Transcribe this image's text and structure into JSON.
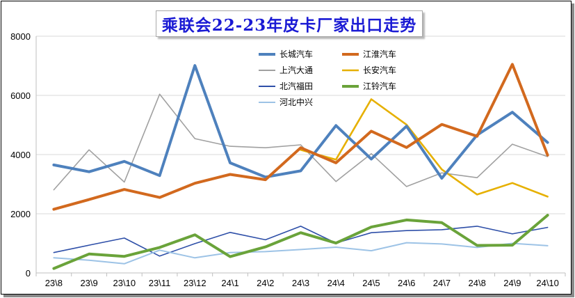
{
  "title": "乘联会22-23年皮卡厂家出口走势",
  "chart_data": {
    "type": "line",
    "title": "乘联会22-23年皮卡厂家出口走势",
    "xlabel": "",
    "ylabel": "",
    "ylim": [
      0,
      8000
    ],
    "yticks": [
      0,
      2000,
      4000,
      6000,
      8000
    ],
    "grid": "horizontal",
    "legend_position": "top-center",
    "categories": [
      "23\\8",
      "23\\9",
      "23\\10",
      "23\\11",
      "23\\12",
      "24\\1",
      "24\\2",
      "24\\3",
      "24\\4",
      "24\\5",
      "24\\6",
      "24\\7",
      "24\\8",
      "24\\9",
      "24\\10"
    ],
    "series": [
      {
        "name": "长城汽车",
        "color": "#4e81bd",
        "width": 4,
        "values": [
          3650,
          3420,
          3770,
          3290,
          7010,
          3720,
          3240,
          3450,
          4980,
          3850,
          4960,
          3200,
          4660,
          5430,
          4410
        ]
      },
      {
        "name": "江淮汽车",
        "color": "#d2691e",
        "width": 4,
        "values": [
          2150,
          2480,
          2820,
          2550,
          3030,
          3330,
          3150,
          4230,
          3720,
          4790,
          4240,
          5020,
          4620,
          7050,
          3980
        ]
      },
      {
        "name": "上汽大通",
        "color": "#a0a0a0",
        "width": 1.6,
        "values": [
          2810,
          4160,
          3070,
          6040,
          4540,
          4280,
          4230,
          4330,
          3090,
          4030,
          2920,
          3380,
          3220,
          4350,
          3930
        ]
      },
      {
        "name": "长安汽车",
        "color": "#e6b000",
        "width": 2.6,
        "values": [
          null,
          null,
          null,
          null,
          null,
          null,
          null,
          4160,
          3830,
          5870,
          5010,
          3500,
          2650,
          3040,
          2580
        ]
      },
      {
        "name": "北汽福田",
        "color": "#2e4fa8",
        "width": 1.6,
        "values": [
          690,
          940,
          1180,
          570,
          990,
          1370,
          1120,
          1580,
          1010,
          1360,
          1430,
          1460,
          1580,
          1320,
          1540
        ]
      },
      {
        "name": "江铃汽车",
        "color": "#6aa33a",
        "width": 4,
        "values": [
          150,
          640,
          560,
          860,
          1290,
          550,
          880,
          1360,
          1010,
          1550,
          1790,
          1700,
          930,
          940,
          1950
        ]
      },
      {
        "name": "河北中兴",
        "color": "#9dc3e6",
        "width": 2,
        "values": [
          510,
          430,
          310,
          770,
          510,
          690,
          720,
          790,
          870,
          750,
          1020,
          980,
          860,
          1000,
          920
        ]
      }
    ]
  }
}
